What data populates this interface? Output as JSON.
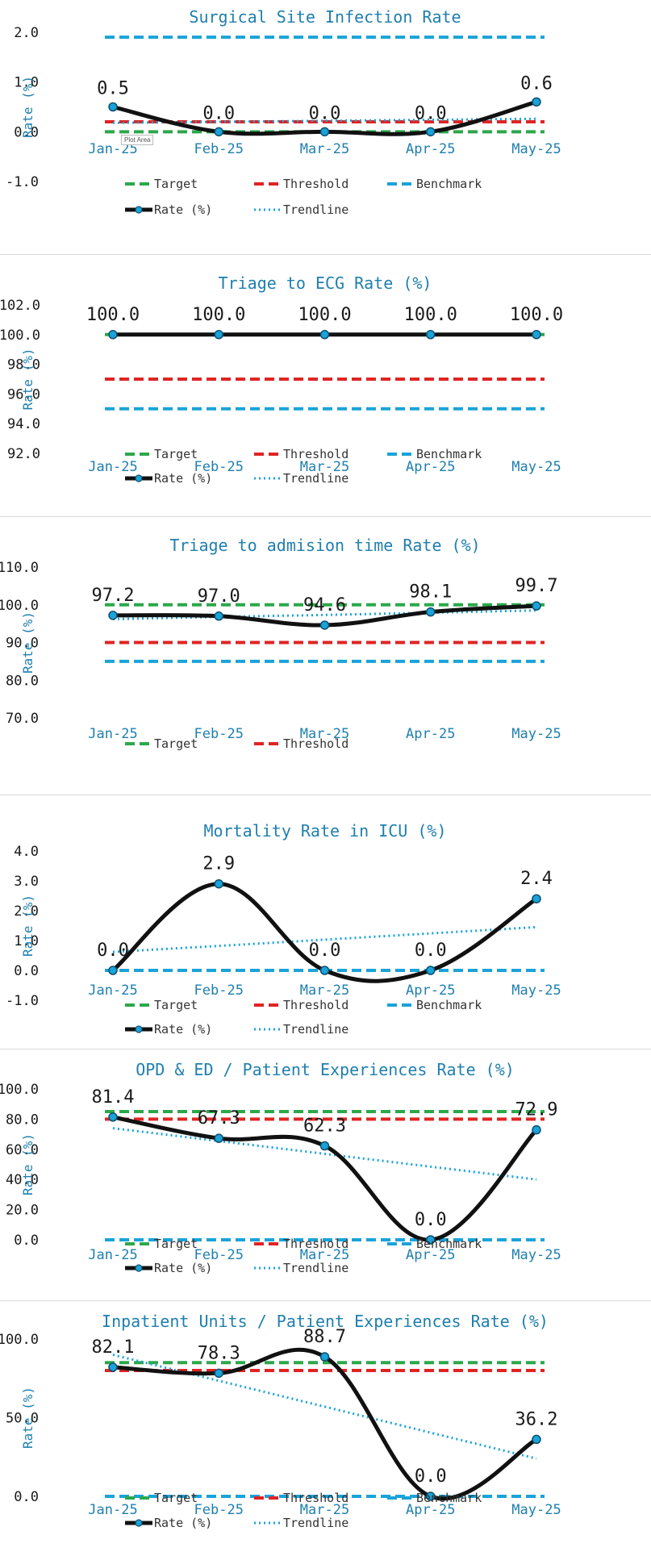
{
  "plot_area_tooltip": "Plot Area",
  "colors": {
    "title": "#1f7fae",
    "axis_label": "#1f7fae",
    "tick": "#1a1a1a",
    "category": "#1f7fae",
    "target": "#2ca84a",
    "threshold": "#e02424",
    "benchmark": "#1aa3d9",
    "rate": "#111111",
    "trendline": "#1aa3d9",
    "marker_fill": "#1aa3d9"
  },
  "chart_data": [
    {
      "type": "line",
      "title": "Surgical Site Infection Rate",
      "ylabel": "Rate (%)",
      "xlabel": "",
      "ylim": [
        -1.0,
        2.0
      ],
      "yticks": [
        "2.0",
        "1.0",
        "0.0",
        "-1.0"
      ],
      "ytick_values": [
        2.0,
        1.0,
        0.0,
        -1.0
      ],
      "categories": [
        "Jan-25",
        "Feb-25",
        "Mar-25",
        "Apr-25",
        "May-25"
      ],
      "data_labels": [
        "0.5",
        "0.0",
        "0.0",
        "0.0",
        "0.6"
      ],
      "series": [
        {
          "name": "Target",
          "key": "target",
          "values": [
            0.0,
            0.0,
            0.0,
            0.0,
            0.0
          ]
        },
        {
          "name": "Threshold",
          "key": "threshold",
          "values": [
            0.2,
            0.2,
            0.2,
            0.2,
            0.2
          ]
        },
        {
          "name": "Benchmark",
          "key": "benchmark",
          "values": [
            1.9,
            1.9,
            1.9,
            1.9,
            1.9
          ]
        },
        {
          "name": "Rate (%)",
          "key": "rate",
          "values": [
            0.5,
            0.0,
            0.0,
            0.0,
            0.6
          ]
        },
        {
          "name": "Trendline",
          "key": "trendline",
          "values": [
            0.18,
            0.2,
            0.22,
            0.24,
            0.26
          ]
        }
      ],
      "legend_position": "bottom",
      "legend_rows": [
        [
          "Target",
          "Threshold",
          "Benchmark"
        ],
        [
          "Rate (%)",
          "Trendline"
        ]
      ]
    },
    {
      "type": "line",
      "title": "Triage to ECG Rate (%)",
      "ylabel": "Rate (%)",
      "xlabel": "",
      "ylim": [
        92.0,
        102.0
      ],
      "yticks": [
        "102.0",
        "100.0",
        "98.0",
        "96.0",
        "94.0",
        "92.0"
      ],
      "ytick_values": [
        102.0,
        100.0,
        98.0,
        96.0,
        94.0,
        92.0
      ],
      "categories": [
        "Jan-25",
        "Feb-25",
        "Mar-25",
        "Apr-25",
        "May-25"
      ],
      "data_labels": [
        "100.0",
        "100.0",
        "100.0",
        "100.0",
        "100.0"
      ],
      "series": [
        {
          "name": "Target",
          "key": "target",
          "values": [
            100,
            100,
            100,
            100,
            100
          ]
        },
        {
          "name": "Threshold",
          "key": "threshold",
          "values": [
            97,
            97,
            97,
            97,
            97
          ]
        },
        {
          "name": "Benchmark",
          "key": "benchmark",
          "values": [
            95,
            95,
            95,
            95,
            95
          ]
        },
        {
          "name": "Rate (%)",
          "key": "rate",
          "values": [
            100,
            100,
            100,
            100,
            100
          ]
        },
        {
          "name": "Trendline",
          "key": "trendline",
          "values": [
            100,
            100,
            100,
            100,
            100
          ]
        }
      ],
      "legend_position": "bottom",
      "legend_rows": [
        [
          "Target",
          "Threshold",
          "Benchmark"
        ],
        [
          "Rate (%)",
          "Trendline"
        ]
      ]
    },
    {
      "type": "line",
      "title": "Triage to admision time Rate (%)",
      "ylabel": "Rate (%)",
      "xlabel": "",
      "ylim": [
        70.0,
        110.0
      ],
      "yticks": [
        "110.0",
        "100.0",
        "90.0",
        "80.0",
        "70.0"
      ],
      "ytick_values": [
        110.0,
        100.0,
        90.0,
        80.0,
        70.0
      ],
      "categories": [
        "Jan-25",
        "Feb-25",
        "Mar-25",
        "Apr-25",
        "May-25"
      ],
      "data_labels": [
        "97.2",
        "97.0",
        "94.6",
        "98.1",
        "99.7"
      ],
      "series": [
        {
          "name": "Target",
          "key": "target",
          "values": [
            100,
            100,
            100,
            100,
            100
          ]
        },
        {
          "name": "Threshold",
          "key": "threshold",
          "values": [
            90,
            90,
            90,
            90,
            90
          ]
        },
        {
          "key": "benchmark",
          "values": [
            85,
            85,
            85,
            85,
            85
          ]
        },
        {
          "key": "rate",
          "values": [
            97.2,
            97.0,
            94.6,
            98.1,
            99.7
          ]
        },
        {
          "key": "trendline",
          "values": [
            96.2,
            96.8,
            97.3,
            97.9,
            98.5
          ]
        }
      ],
      "legend_position": "bottom",
      "legend_rows": [
        [
          "Target",
          "Threshold"
        ]
      ]
    },
    {
      "type": "line",
      "title": "Mortality Rate in ICU (%)",
      "ylabel": "Rate (%)",
      "xlabel": "",
      "ylim": [
        -1.0,
        4.0
      ],
      "yticks": [
        "4.0",
        "3.0",
        "2.0",
        "1.0",
        "0.0",
        "-1.0"
      ],
      "ytick_values": [
        4.0,
        3.0,
        2.0,
        1.0,
        0.0,
        -1.0
      ],
      "categories": [
        "Jan-25",
        "Feb-25",
        "Mar-25",
        "Apr-25",
        "May-25"
      ],
      "data_labels": [
        "0.0",
        "2.9",
        "0.0",
        "0.0",
        "2.4"
      ],
      "series": [
        {
          "name": "Target",
          "key": "target",
          "values": [
            0,
            0,
            0,
            0,
            0
          ]
        },
        {
          "name": "Threshold",
          "key": "threshold",
          "values": [
            0,
            0,
            0,
            0,
            0
          ]
        },
        {
          "name": "Benchmark",
          "key": "benchmark",
          "values": [
            0,
            0,
            0,
            0,
            0
          ]
        },
        {
          "name": "Rate (%)",
          "key": "rate",
          "values": [
            0.0,
            2.9,
            0.0,
            0.0,
            2.4
          ]
        },
        {
          "name": "Trendline",
          "key": "trendline",
          "values": [
            0.62,
            0.82,
            1.03,
            1.24,
            1.45
          ]
        }
      ],
      "legend_position": "bottom",
      "legend_rows": [
        [
          "Target",
          "Threshold",
          "Benchmark"
        ],
        [
          "Rate (%)",
          "Trendline"
        ]
      ]
    },
    {
      "type": "line",
      "title": "OPD & ED / Patient Experiences Rate (%)",
      "ylabel": "Rate (%)",
      "xlabel": "",
      "ylim": [
        0.0,
        100.0
      ],
      "yticks": [
        "100.0",
        "80.0",
        "60.0",
        "40.0",
        "20.0",
        "0.0"
      ],
      "ytick_values": [
        100.0,
        80.0,
        60.0,
        40.0,
        20.0,
        0.0
      ],
      "categories": [
        "Jan-25",
        "Feb-25",
        "Mar-25",
        "Apr-25",
        "May-25"
      ],
      "data_labels": [
        "81.4",
        "67.3",
        "62.3",
        "0.0",
        "72.9"
      ],
      "series": [
        {
          "name": "Target",
          "key": "target",
          "values": [
            85,
            85,
            85,
            85,
            85
          ]
        },
        {
          "name": "Threshold",
          "key": "threshold",
          "values": [
            80,
            80,
            80,
            80,
            80
          ]
        },
        {
          "name": "Benchmark",
          "key": "benchmark",
          "values": [
            0,
            0,
            0,
            0,
            0
          ]
        },
        {
          "name": "Rate (%)",
          "key": "rate",
          "values": [
            81.4,
            67.3,
            62.3,
            0.0,
            72.9
          ]
        },
        {
          "name": "Trendline",
          "key": "trendline",
          "values": [
            74,
            65.5,
            57,
            48.5,
            40
          ]
        }
      ],
      "legend_position": "bottom",
      "legend_rows": [
        [
          "Target",
          "Threshold",
          "Benchmark"
        ],
        [
          "Rate (%)",
          "Trendline"
        ]
      ]
    },
    {
      "type": "line",
      "title": "Inpatient Units / Patient Experiences Rate (%)",
      "ylabel": "Rate (%)",
      "xlabel": "",
      "ylim": [
        0.0,
        100.0
      ],
      "yticks": [
        "100.0",
        "50.0",
        "0.0"
      ],
      "ytick_values": [
        100.0,
        50.0,
        0.0
      ],
      "categories": [
        "Jan-25",
        "Feb-25",
        "Mar-25",
        "Apr-25",
        "May-25"
      ],
      "data_labels": [
        "82.1",
        "78.3",
        "88.7",
        "0.0",
        "36.2"
      ],
      "series": [
        {
          "name": "Target",
          "key": "target",
          "values": [
            85,
            85,
            85,
            85,
            85
          ]
        },
        {
          "name": "Threshold",
          "key": "threshold",
          "values": [
            80,
            80,
            80,
            80,
            80
          ]
        },
        {
          "name": "Benchmark",
          "key": "benchmark",
          "values": [
            0,
            0,
            0,
            0,
            0
          ]
        },
        {
          "name": "Rate (%)",
          "key": "rate",
          "values": [
            82.1,
            78.3,
            88.7,
            0.0,
            36.2
          ]
        },
        {
          "name": "Trendline",
          "key": "trendline",
          "values": [
            90,
            73.5,
            57,
            40.5,
            24
          ]
        }
      ],
      "legend_position": "bottom",
      "legend_rows": [
        [
          "Target",
          "Threshold",
          "Benchmark"
        ],
        [
          "Rate (%)",
          "Trendline"
        ]
      ]
    }
  ]
}
